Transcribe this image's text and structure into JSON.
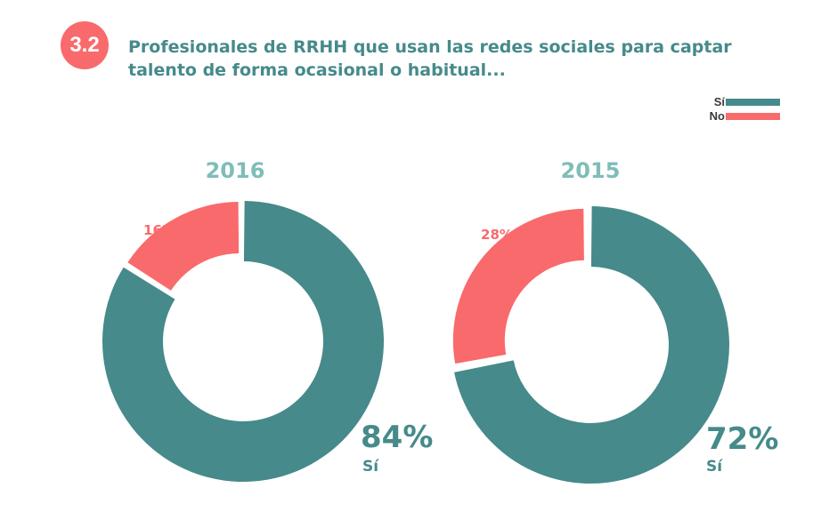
{
  "header": {
    "section_number": "3.2",
    "title": "Profesionales de RRHH que usan las redes sociales para captar talento de forma ocasional o habitual..."
  },
  "legend": {
    "items": [
      {
        "label": "Sí",
        "color": "#468a8b"
      },
      {
        "label": "No",
        "color": "#f96a6c"
      }
    ]
  },
  "chart_data": [
    {
      "type": "pie",
      "variant": "donut",
      "title": "2016",
      "categories": [
        "Sí",
        "No"
      ],
      "values": [
        84,
        16
      ],
      "value_labels": [
        "84%",
        "16%"
      ],
      "colors": [
        "#468a8b",
        "#f96a6c"
      ]
    },
    {
      "type": "pie",
      "variant": "donut",
      "title": "2015",
      "categories": [
        "Sí",
        "No"
      ],
      "values": [
        72,
        28
      ],
      "value_labels": [
        "72%",
        "28%"
      ],
      "colors": [
        "#468a8b",
        "#f96a6c"
      ]
    }
  ]
}
